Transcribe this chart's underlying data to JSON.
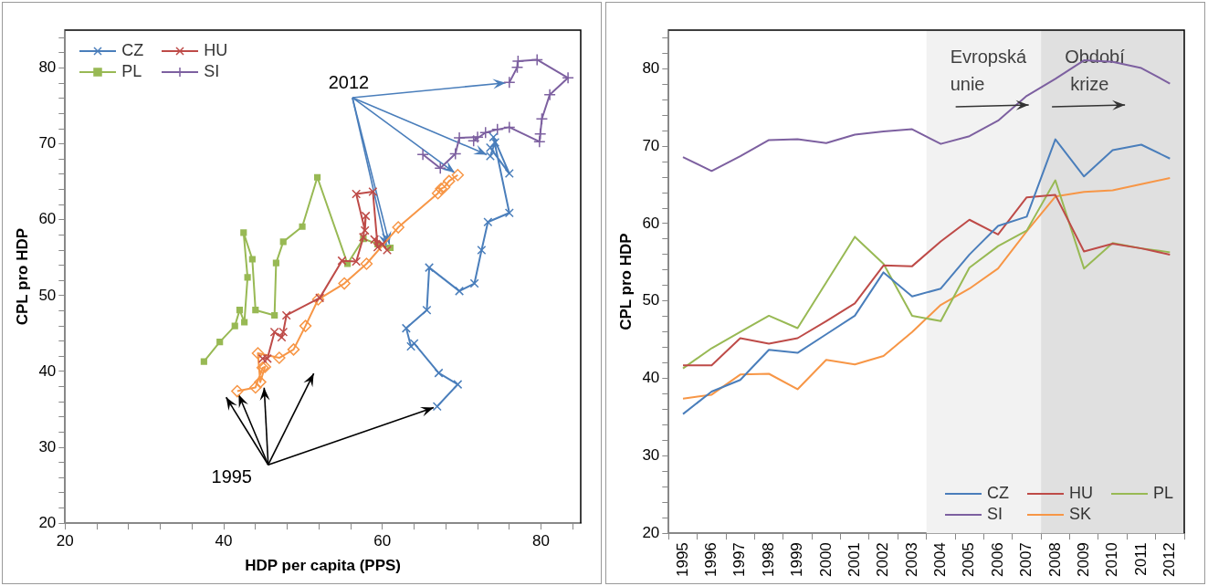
{
  "chart_data": [
    {
      "type": "line",
      "xlabel": "HDP per capita (PPS)",
      "ylabel": "CPL pro HDP",
      "xlim": [
        20,
        85
      ],
      "xticks": [
        20,
        {
          "value": 24,
          "label": null
        },
        {
          "value": 28,
          "label": null
        },
        {
          "value": 32,
          "label": null
        },
        {
          "value": 36,
          "label": null
        },
        40,
        {
          "value": 44,
          "label": null
        },
        {
          "value": 48,
          "label": null
        },
        {
          "value": 52,
          "label": null
        },
        {
          "value": 56,
          "label": null
        },
        60,
        {
          "value": 64,
          "label": null
        },
        {
          "value": 68,
          "label": null
        },
        {
          "value": 72,
          "label": null
        },
        {
          "value": 76,
          "label": null
        },
        80,
        {
          "value": 84,
          "label": null
        }
      ],
      "ylim": [
        20,
        85
      ],
      "yticks": [
        20,
        {
          "value": 22,
          "label": null
        },
        {
          "value": 24,
          "label": null
        },
        {
          "value": 26,
          "label": null
        },
        {
          "value": 28,
          "label": null
        },
        30,
        {
          "value": 32,
          "label": null
        },
        {
          "value": 34,
          "label": null
        },
        {
          "value": 36,
          "label": null
        },
        {
          "value": 38,
          "label": null
        },
        40,
        {
          "value": 42,
          "label": null
        },
        {
          "value": 44,
          "label": null
        },
        {
          "value": 46,
          "label": null
        },
        {
          "value": 48,
          "label": null
        },
        50,
        {
          "value": 52,
          "label": null
        },
        {
          "value": 54,
          "label": null
        },
        {
          "value": 56,
          "label": null
        },
        {
          "value": 58,
          "label": null
        },
        60,
        {
          "value": 62,
          "label": null
        },
        {
          "value": 64,
          "label": null
        },
        {
          "value": 66,
          "label": null
        },
        {
          "value": 68,
          "label": null
        },
        70,
        {
          "value": 72,
          "label": null
        },
        {
          "value": 74,
          "label": null
        },
        {
          "value": 76,
          "label": null
        },
        {
          "value": 78,
          "label": null
        },
        80,
        {
          "value": 82,
          "label": null
        },
        {
          "value": 84,
          "label": null
        }
      ],
      "grid": false,
      "legend": "top left",
      "annotations": [
        {
          "text": "1995",
          "x": 66.9,
          "y": 35.4
        },
        {
          "text": "2012",
          "x": 73.6,
          "y": 68.4
        }
      ],
      "series": [
        {
          "name": "CZ",
          "color": "#4a7ebb",
          "marker": "cross",
          "x": [
            66.9,
            69.5,
            67.1,
            64.0,
            63.6,
            63.0,
            65.6,
            65.9,
            69.7,
            71.6,
            72.5,
            73.3,
            76.0,
            74.0,
            76.0,
            73.6,
            74.2,
            73.6
          ],
          "values": [
            35.4,
            38.3,
            39.8,
            43.7,
            43.3,
            45.7,
            48.1,
            53.7,
            50.6,
            51.6,
            56.0,
            59.7,
            60.9,
            70.9,
            66.1,
            69.5,
            70.2,
            68.4
          ]
        },
        {
          "name": "HU",
          "color": "#be4b48",
          "marker": "cross",
          "x": [
            44.9,
            45.5,
            46.4,
            47.3,
            47.5,
            47.9,
            52.1,
            54.9,
            56.7,
            57.6,
            57.9,
            57.8,
            56.7,
            58.8,
            59.4,
            59.0,
            60.0,
            60.6
          ],
          "values": [
            41.7,
            41.7,
            45.2,
            44.5,
            45.2,
            47.4,
            49.7,
            54.6,
            54.5,
            57.7,
            60.5,
            58.6,
            63.4,
            63.7,
            56.4,
            57.4,
            56.8,
            56.0
          ]
        },
        {
          "name": "PL",
          "color": "#98b954",
          "marker": "square",
          "x": [
            37.5,
            39.5,
            41.4,
            42.0,
            42.6,
            43.0,
            42.5,
            43.6,
            44.0,
            46.4,
            46.6,
            47.5,
            49.9,
            51.8,
            55.6,
            57.6,
            59.4,
            61.0
          ],
          "values": [
            41.3,
            43.9,
            46.0,
            48.1,
            46.5,
            52.4,
            58.3,
            54.8,
            48.1,
            47.4,
            54.3,
            57.1,
            59.1,
            65.6,
            54.2,
            57.5,
            56.8,
            56.3
          ]
        },
        {
          "name": "SI",
          "color": "#7d60a0",
          "marker": "plus",
          "x": [
            65.1,
            67.3,
            69.2,
            69.7,
            72.0,
            71.5,
            73.0,
            74.5,
            76.0,
            79.8,
            79.9,
            80.1,
            81.1,
            83.4,
            79.5,
            77.1,
            77.0,
            76.0
          ],
          "values": [
            68.6,
            66.8,
            68.7,
            70.8,
            70.9,
            70.4,
            71.5,
            71.9,
            72.2,
            70.3,
            71.3,
            73.3,
            76.5,
            78.7,
            81.1,
            80.9,
            80.1,
            78.1
          ]
        },
        {
          "color": "#f79646",
          "marker": "diamond",
          "x": [
            41.7,
            44.0,
            44.9,
            45.2,
            44.6,
            44.3,
            47.0,
            48.8,
            50.3,
            51.9,
            55.2,
            58.0,
            62.0,
            67.0,
            67.4,
            67.8,
            68.4,
            69.5
          ],
          "values": [
            37.4,
            37.9,
            40.5,
            40.6,
            38.6,
            42.4,
            41.8,
            42.9,
            46.0,
            49.5,
            51.6,
            54.2,
            59.0,
            63.5,
            64.1,
            64.3,
            65.1,
            65.9
          ]
        }
      ]
    },
    {
      "type": "line",
      "ylabel": "CPL pro HDP",
      "categories": [
        "1995",
        "1996",
        "1997",
        "1998",
        "1999",
        "2000",
        "2001",
        "2002",
        "2003",
        "2004",
        "2005",
        "2006",
        "2007",
        "2008",
        "2009",
        "2010",
        "2011",
        "2012"
      ],
      "ylim": [
        20,
        85
      ],
      "yticks": [
        20,
        {
          "value": 22,
          "label": null
        },
        {
          "value": 24,
          "label": null
        },
        {
          "value": 26,
          "label": null
        },
        {
          "value": 28,
          "label": null
        },
        30,
        {
          "value": 32,
          "label": null
        },
        {
          "value": 34,
          "label": null
        },
        {
          "value": 36,
          "label": null
        },
        {
          "value": 38,
          "label": null
        },
        40,
        {
          "value": 42,
          "label": null
        },
        {
          "value": 44,
          "label": null
        },
        {
          "value": 46,
          "label": null
        },
        {
          "value": 48,
          "label": null
        },
        50,
        {
          "value": 52,
          "label": null
        },
        {
          "value": 54,
          "label": null
        },
        {
          "value": 56,
          "label": null
        },
        {
          "value": 58,
          "label": null
        },
        60,
        {
          "value": 62,
          "label": null
        },
        {
          "value": 64,
          "label": null
        },
        {
          "value": 66,
          "label": null
        },
        {
          "value": 68,
          "label": null
        },
        70,
        {
          "value": 72,
          "label": null
        },
        {
          "value": 74,
          "label": null
        },
        {
          "value": 76,
          "label": null
        },
        {
          "value": 78,
          "label": null
        },
        80,
        {
          "value": 82,
          "label": null
        },
        {
          "value": 84,
          "label": null
        }
      ],
      "grid": false,
      "legend": "bottom right",
      "marker": "none",
      "bands": [
        {
          "axis": "x",
          "from": "2004",
          "to": "2007",
          "label": "Evropská unie",
          "color": "#f2f2f2"
        },
        {
          "axis": "x",
          "from": "2008",
          "to": "2012",
          "label": "Období krize",
          "color": "#e0e0e0"
        }
      ],
      "series": [
        {
          "name": "CZ",
          "color": "#4a7ebb",
          "values": [
            35.4,
            38.3,
            39.8,
            43.7,
            43.3,
            45.7,
            48.1,
            53.7,
            50.6,
            51.6,
            56.0,
            59.7,
            60.9,
            70.9,
            66.1,
            69.5,
            70.2,
            68.4
          ]
        },
        {
          "name": "HU",
          "color": "#be4b48",
          "values": [
            41.7,
            41.7,
            45.2,
            44.5,
            45.2,
            47.4,
            49.7,
            54.6,
            54.5,
            57.7,
            60.5,
            58.6,
            63.4,
            63.7,
            56.4,
            57.4,
            56.8,
            56.0
          ]
        },
        {
          "name": "PL",
          "color": "#98b954",
          "values": [
            41.3,
            43.9,
            46.0,
            48.1,
            46.5,
            52.4,
            58.3,
            54.8,
            48.1,
            47.4,
            54.3,
            57.1,
            59.1,
            65.6,
            54.2,
            57.5,
            56.8,
            56.3
          ]
        },
        {
          "name": "SI",
          "color": "#7d60a0",
          "values": [
            68.6,
            66.8,
            68.7,
            70.8,
            70.9,
            70.4,
            71.5,
            71.9,
            72.2,
            70.3,
            71.3,
            73.3,
            76.5,
            78.7,
            81.1,
            80.9,
            80.1,
            78.1
          ]
        },
        {
          "name": "SK",
          "color": "#f79646",
          "values": [
            37.4,
            37.9,
            40.5,
            40.6,
            38.6,
            42.4,
            41.8,
            42.9,
            46.0,
            49.5,
            51.6,
            54.2,
            59.0,
            63.5,
            64.1,
            64.3,
            65.1,
            65.9
          ]
        }
      ]
    }
  ]
}
